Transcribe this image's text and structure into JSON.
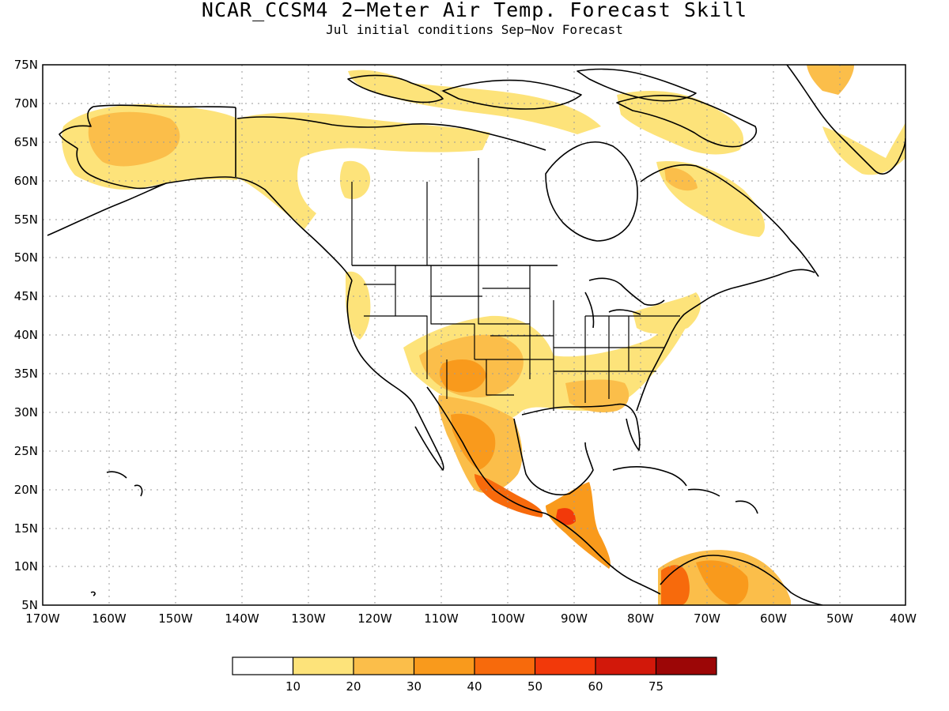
{
  "title": "NCAR_CCSM4 2−Meter Air Temp. Forecast Skill",
  "subtitle": "Jul initial conditions  Sep−Nov Forecast",
  "map": {
    "lon_range": [
      -170,
      -40
    ],
    "lat_range": [
      5,
      75
    ],
    "lat_labels": [
      "75N",
      "70N",
      "65N",
      "60N",
      "55N",
      "50N",
      "45N",
      "40N",
      "35N",
      "30N",
      "25N",
      "20N",
      "15N",
      "10N",
      "5N"
    ],
    "lon_labels": [
      "170W",
      "160W",
      "150W",
      "140W",
      "130W",
      "120W",
      "110W",
      "100W",
      "90W",
      "80W",
      "70W",
      "60W",
      "50W",
      "40W"
    ],
    "grid": true
  },
  "colorbar": {
    "colors": [
      "#ffffff",
      "#fde37a",
      "#fbbe4a",
      "#f99a1c",
      "#f76a0c",
      "#f2390a",
      "#d2180a",
      "#9c0606"
    ],
    "labels": [
      "10",
      "20",
      "30",
      "40",
      "50",
      "60",
      "75"
    ]
  }
}
